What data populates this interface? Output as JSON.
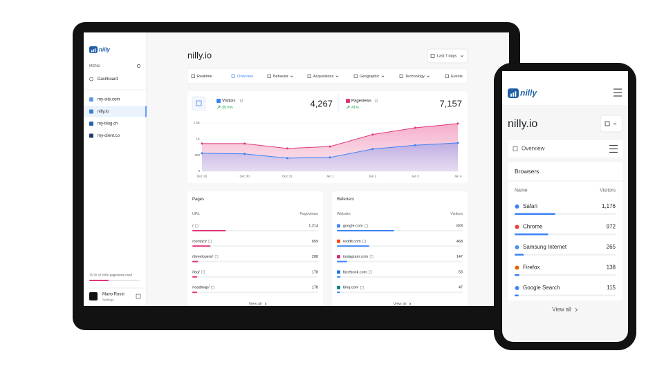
{
  "tablet": {
    "brand": "nilly",
    "menu_label": "MENU",
    "nav": [
      "Dashboard"
    ],
    "sites": [
      "my-site.com",
      "nilly.io",
      "my-blog.ch",
      "my-client.co"
    ],
    "usage": "76.7K of 200K pageviews used",
    "user": {
      "name": "Mario Rossi",
      "role": "Settings"
    },
    "title": "nilly.io",
    "date_range": "Last 7 days",
    "tabs": [
      "Realtime",
      "Overview",
      "Behavior",
      "Acquisitions",
      "Geographic",
      "Technology",
      "Events"
    ],
    "kpis": [
      {
        "change": "35.6%",
        "value": "4,267"
      },
      {
        "change": "41%",
        "value": "7,157"
      }
    ],
    "pages": {
      "title": "Pages",
      "columns": [
        "URL",
        "Pageviews"
      ],
      "rows": [
        {
          "label": "/",
          "value": 1214,
          "value_label": "1,214"
        },
        {
          "label": "/contact/",
          "value": 659
        },
        {
          "label": "/developers/",
          "value": 208
        },
        {
          "label": "/faq/",
          "value": 178
        },
        {
          "label": "/roadmap/",
          "value": 178
        }
      ],
      "footer": "View all"
    },
    "referrers": {
      "title": "Referrers",
      "columns": [
        "Website",
        "Visitors"
      ],
      "rows": [
        {
          "label": "google.com",
          "value": 828
        },
        {
          "label": "reddit.com",
          "value": 468
        },
        {
          "label": "instagram.com",
          "value": 147
        },
        {
          "label": "facebook.com",
          "value": 53
        },
        {
          "label": "bing.com",
          "value": 47
        }
      ],
      "footer": "View all"
    }
  },
  "chart_data": {
    "type": "line",
    "x": [
      "Dec 29",
      "Dec 30",
      "Dec 31",
      "Jan 1",
      "Jan 2",
      "Jan 3",
      "Jan 4"
    ],
    "series": [
      {
        "name": "Visitors",
        "color": "#3b82f6",
        "values": [
          560,
          540,
          410,
          430,
          690,
          810,
          880
        ]
      },
      {
        "name": "Pageviews",
        "color": "#e0367a",
        "values": [
          860,
          860,
          710,
          770,
          1140,
          1350,
          1480
        ]
      }
    ],
    "ylim": [
      0,
      1500
    ],
    "yticks": [
      0,
      500,
      {
        "value": 1000,
        "label": "1K"
      },
      {
        "value": 1500,
        "label": "1.5K"
      }
    ],
    "grid": true
  },
  "phone": {
    "brand": "nilly",
    "title": "nilly.io",
    "section": "Overview",
    "card_title": "Browsers",
    "columns": [
      "Name",
      "Visitors"
    ],
    "rows": [
      {
        "label": "Safari",
        "value": 1176,
        "value_label": "1,176"
      },
      {
        "label": "Chrome",
        "value": 972
      },
      {
        "label": "Samsung Internet",
        "value": 265
      },
      {
        "label": "Firefox",
        "value": 138
      },
      {
        "label": "Google Search",
        "value": 115
      }
    ],
    "footer": "View all"
  }
}
